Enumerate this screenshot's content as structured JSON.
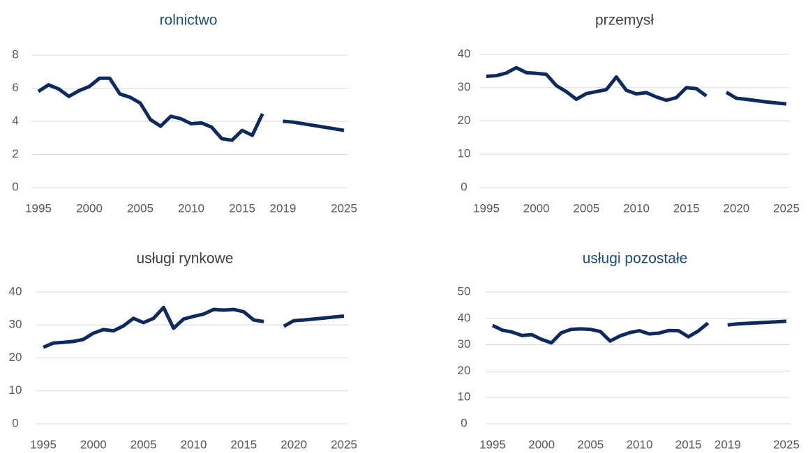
{
  "chart_data": [
    {
      "type": "line",
      "title": "rolnictwo",
      "title_color": "#1f4e79",
      "x": [
        1995,
        1996,
        1997,
        1998,
        1999,
        2000,
        2001,
        2002,
        2003,
        2004,
        2005,
        2006,
        2007,
        2008,
        2009,
        2010,
        2011,
        2012,
        2013,
        2014,
        2015,
        2016,
        2017,
        2018,
        2019,
        2020,
        2021,
        2022,
        2023,
        2024,
        2025
      ],
      "series": [
        {
          "color": "#0e2a5c",
          "values": [
            5.8,
            6.2,
            5.95,
            5.5,
            5.85,
            6.1,
            6.6,
            6.6,
            5.65,
            5.45,
            5.1,
            4.1,
            3.7,
            4.3,
            4.15,
            3.85,
            3.9,
            3.65,
            2.95,
            2.85,
            3.45,
            3.15,
            4.45,
            null,
            4.0,
            3.95,
            3.85,
            3.75,
            3.65,
            3.55,
            3.45
          ]
        }
      ],
      "xlim": [
        1995,
        2025
      ],
      "xticks": [
        1995,
        2000,
        2005,
        2010,
        2015,
        2019,
        2025
      ],
      "ylim": [
        0,
        8
      ],
      "yticks": [
        0,
        2,
        4,
        6,
        8
      ],
      "grid": true
    },
    {
      "type": "line",
      "title": "przemysł",
      "title_color": "#404040",
      "x": [
        1995,
        1996,
        1997,
        1998,
        1999,
        2000,
        2001,
        2002,
        2003,
        2004,
        2005,
        2006,
        2007,
        2008,
        2009,
        2010,
        2011,
        2012,
        2013,
        2014,
        2015,
        2016,
        2017,
        2018,
        2019,
        2020,
        2021,
        2022,
        2023,
        2024,
        2025
      ],
      "series": [
        {
          "color": "#0e2a5c",
          "values": [
            33.4,
            33.6,
            34.4,
            36.0,
            34.5,
            34.3,
            34.0,
            30.6,
            28.8,
            26.5,
            28.2,
            28.8,
            29.4,
            33.2,
            29.2,
            28.1,
            28.5,
            27.2,
            26.2,
            27.0,
            30.0,
            29.7,
            27.5,
            null,
            28.6,
            26.8,
            26.5,
            26.1,
            25.7,
            25.4,
            25.1
          ]
        }
      ],
      "xlim": [
        1995,
        2025
      ],
      "xticks": [
        1995,
        2000,
        2005,
        2010,
        2015,
        2020,
        2025
      ],
      "ylim": [
        0,
        40
      ],
      "yticks": [
        0,
        10,
        20,
        30,
        40
      ],
      "grid": true
    },
    {
      "type": "line",
      "title": "usługi rynkowe",
      "title_color": "#404040",
      "x": [
        1995,
        1996,
        1997,
        1998,
        1999,
        2000,
        2001,
        2002,
        2003,
        2004,
        2005,
        2006,
        2007,
        2008,
        2009,
        2010,
        2011,
        2012,
        2013,
        2014,
        2015,
        2016,
        2017,
        2018,
        2019,
        2020,
        2021,
        2022,
        2023,
        2024,
        2025
      ],
      "series": [
        {
          "color": "#0e2a5c",
          "values": [
            23.2,
            24.5,
            24.7,
            25.0,
            25.6,
            27.5,
            28.6,
            28.2,
            29.7,
            32.0,
            30.7,
            32.0,
            35.3,
            29.0,
            31.8,
            32.6,
            33.3,
            34.7,
            34.5,
            34.7,
            34.0,
            31.5,
            31.0,
            null,
            29.6,
            31.3,
            31.5,
            31.8,
            32.1,
            32.4,
            32.7
          ]
        }
      ],
      "xlim": [
        1995,
        2025
      ],
      "xticks": [
        1995,
        2000,
        2005,
        2010,
        2015,
        2020,
        2025
      ],
      "ylim": [
        0,
        40
      ],
      "yticks": [
        0,
        10,
        20,
        30,
        40
      ],
      "grid": true
    },
    {
      "type": "line",
      "title": "usługi pozostałe",
      "title_color": "#1f4e79",
      "x": [
        1995,
        1996,
        1997,
        1998,
        1999,
        2000,
        2001,
        2002,
        2003,
        2004,
        2005,
        2006,
        2007,
        2008,
        2009,
        2010,
        2011,
        2012,
        2013,
        2014,
        2015,
        2016,
        2017,
        2018,
        2019,
        2020,
        2021,
        2022,
        2023,
        2024,
        2025
      ],
      "series": [
        {
          "color": "#0e2a5c",
          "values": [
            37.3,
            35.5,
            34.8,
            33.5,
            33.8,
            32.0,
            30.7,
            34.5,
            35.8,
            36.0,
            35.8,
            35.0,
            31.4,
            33.3,
            34.6,
            35.3,
            34.1,
            34.4,
            35.4,
            35.3,
            33.0,
            35.2,
            38.2,
            null,
            37.5,
            37.9,
            38.1,
            38.3,
            38.5,
            38.7,
            38.9
          ]
        }
      ],
      "xlim": [
        1995,
        2025
      ],
      "xticks": [
        1995,
        2000,
        2005,
        2010,
        2015,
        2019,
        2025
      ],
      "ylim": [
        0,
        50
      ],
      "yticks": [
        0,
        10,
        20,
        30,
        40,
        50
      ],
      "grid": true
    }
  ]
}
